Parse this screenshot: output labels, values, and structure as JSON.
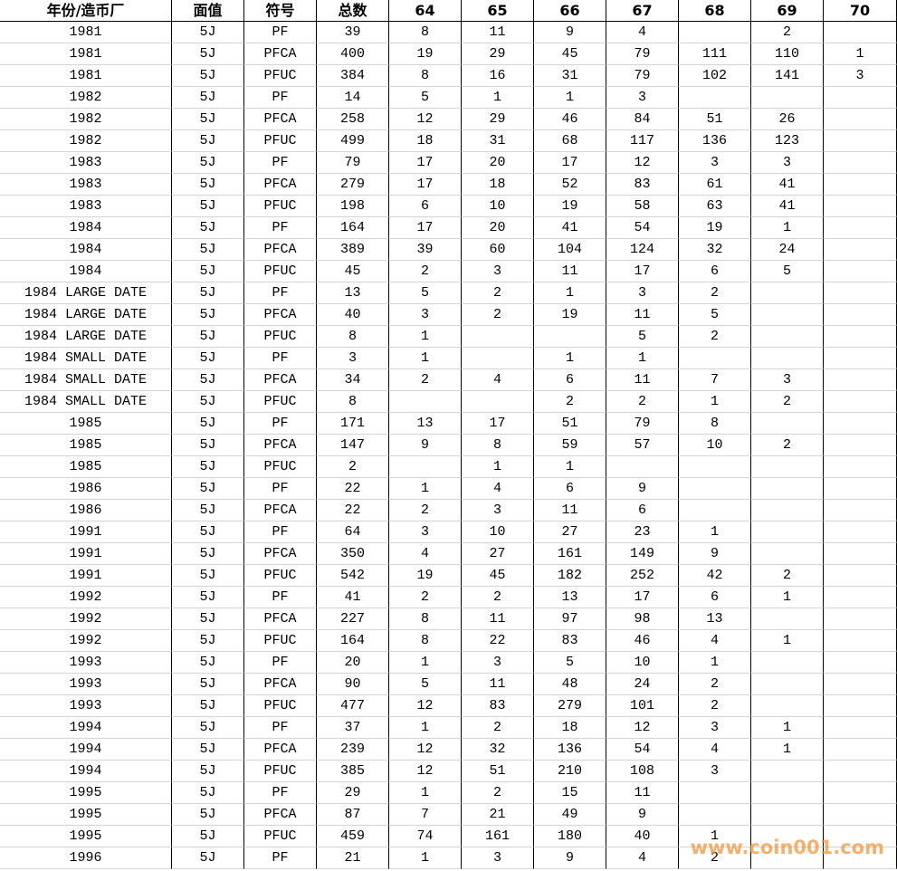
{
  "table": {
    "header": [
      "年份/造币厂",
      "面值",
      "符号",
      "总数",
      "64",
      "65",
      "66",
      "67",
      "68",
      "69",
      "70"
    ],
    "rows": [
      [
        "1981",
        "5J",
        "PF",
        39,
        8,
        11,
        9,
        4,
        null,
        2,
        null
      ],
      [
        "1981",
        "5J",
        "PFCA",
        400,
        19,
        29,
        45,
        79,
        111,
        110,
        1
      ],
      [
        "1981",
        "5J",
        "PFUC",
        384,
        8,
        16,
        31,
        79,
        102,
        141,
        3
      ],
      [
        "1982",
        "5J",
        "PF",
        14,
        5,
        1,
        1,
        3,
        null,
        null,
        null
      ],
      [
        "1982",
        "5J",
        "PFCA",
        258,
        12,
        29,
        46,
        84,
        51,
        26,
        null
      ],
      [
        "1982",
        "5J",
        "PFUC",
        499,
        18,
        31,
        68,
        117,
        136,
        123,
        null
      ],
      [
        "1983",
        "5J",
        "PF",
        79,
        17,
        20,
        17,
        12,
        3,
        3,
        null
      ],
      [
        "1983",
        "5J",
        "PFCA",
        279,
        17,
        18,
        52,
        83,
        61,
        41,
        null
      ],
      [
        "1983",
        "5J",
        "PFUC",
        198,
        6,
        10,
        19,
        58,
        63,
        41,
        null
      ],
      [
        "1984",
        "5J",
        "PF",
        164,
        17,
        20,
        41,
        54,
        19,
        1,
        null
      ],
      [
        "1984",
        "5J",
        "PFCA",
        389,
        39,
        60,
        104,
        124,
        32,
        24,
        null
      ],
      [
        "1984",
        "5J",
        "PFUC",
        45,
        2,
        3,
        11,
        17,
        6,
        5,
        null
      ],
      [
        "1984 LARGE DATE",
        "5J",
        "PF",
        13,
        5,
        2,
        1,
        3,
        2,
        null,
        null
      ],
      [
        "1984 LARGE DATE",
        "5J",
        "PFCA",
        40,
        3,
        2,
        19,
        11,
        5,
        null,
        null
      ],
      [
        "1984 LARGE DATE",
        "5J",
        "PFUC",
        8,
        1,
        null,
        null,
        5,
        2,
        null,
        null
      ],
      [
        "1984 SMALL DATE",
        "5J",
        "PF",
        3,
        1,
        null,
        1,
        1,
        null,
        null,
        null
      ],
      [
        "1984 SMALL DATE",
        "5J",
        "PFCA",
        34,
        2,
        4,
        6,
        11,
        7,
        3,
        null
      ],
      [
        "1984 SMALL DATE",
        "5J",
        "PFUC",
        8,
        null,
        null,
        2,
        2,
        1,
        2,
        null
      ],
      [
        "1985",
        "5J",
        "PF",
        171,
        13,
        17,
        51,
        79,
        8,
        null,
        null
      ],
      [
        "1985",
        "5J",
        "PFCA",
        147,
        9,
        8,
        59,
        57,
        10,
        2,
        null
      ],
      [
        "1985",
        "5J",
        "PFUC",
        2,
        null,
        1,
        1,
        null,
        null,
        null,
        null
      ],
      [
        "1986",
        "5J",
        "PF",
        22,
        1,
        4,
        6,
        9,
        null,
        null,
        null
      ],
      [
        "1986",
        "5J",
        "PFCA",
        22,
        2,
        3,
        11,
        6,
        null,
        null,
        null
      ],
      [
        "1991",
        "5J",
        "PF",
        64,
        3,
        10,
        27,
        23,
        1,
        null,
        null
      ],
      [
        "1991",
        "5J",
        "PFCA",
        350,
        4,
        27,
        161,
        149,
        9,
        null,
        null
      ],
      [
        "1991",
        "5J",
        "PFUC",
        542,
        19,
        45,
        182,
        252,
        42,
        2,
        null
      ],
      [
        "1992",
        "5J",
        "PF",
        41,
        2,
        2,
        13,
        17,
        6,
        1,
        null
      ],
      [
        "1992",
        "5J",
        "PFCA",
        227,
        8,
        11,
        97,
        98,
        13,
        null,
        null
      ],
      [
        "1992",
        "5J",
        "PFUC",
        164,
        8,
        22,
        83,
        46,
        4,
        1,
        null
      ],
      [
        "1993",
        "5J",
        "PF",
        20,
        1,
        3,
        5,
        10,
        1,
        null,
        null
      ],
      [
        "1993",
        "5J",
        "PFCA",
        90,
        5,
        11,
        48,
        24,
        2,
        null,
        null
      ],
      [
        "1993",
        "5J",
        "PFUC",
        477,
        12,
        83,
        279,
        101,
        2,
        null,
        null
      ],
      [
        "1994",
        "5J",
        "PF",
        37,
        1,
        2,
        18,
        12,
        3,
        1,
        null
      ],
      [
        "1994",
        "5J",
        "PFCA",
        239,
        12,
        32,
        136,
        54,
        4,
        1,
        null
      ],
      [
        "1994",
        "5J",
        "PFUC",
        385,
        12,
        51,
        210,
        108,
        3,
        null,
        null
      ],
      [
        "1995",
        "5J",
        "PF",
        29,
        1,
        2,
        15,
        11,
        null,
        null,
        null
      ],
      [
        "1995",
        "5J",
        "PFCA",
        87,
        7,
        21,
        49,
        9,
        null,
        null,
        null
      ],
      [
        "1995",
        "5J",
        "PFUC",
        459,
        74,
        161,
        180,
        40,
        1,
        null,
        null
      ],
      [
        "1996",
        "5J",
        "PF",
        21,
        1,
        3,
        9,
        4,
        2,
        null,
        null
      ]
    ]
  },
  "watermark": "www.coin001.com"
}
